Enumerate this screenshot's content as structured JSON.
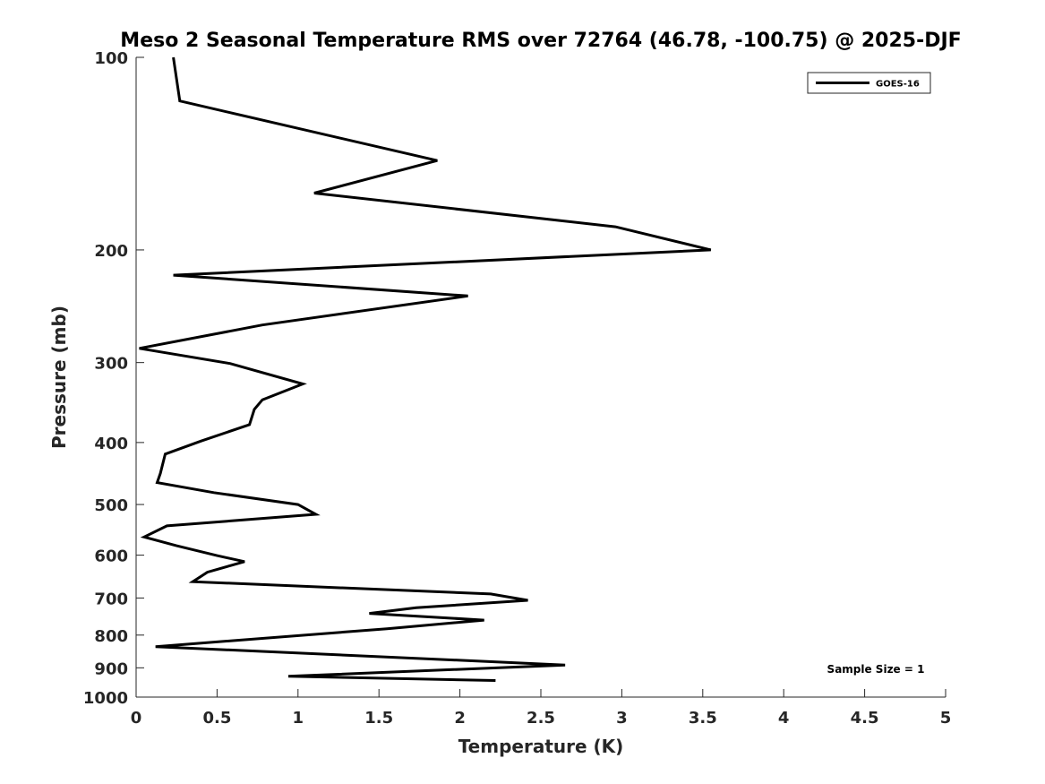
{
  "chart_data": {
    "type": "line",
    "title": "Meso 2 Seasonal Temperature RMS over 72764 (46.78, -100.75) @ 2025-DJF",
    "xlabel": "Temperature (K)",
    "ylabel": "Pressure (mb)",
    "xlim": [
      0,
      5
    ],
    "ylim": [
      100,
      1000
    ],
    "yscale": "log",
    "y_reversed": true,
    "x_ticks": [
      0,
      0.5,
      1,
      1.5,
      2,
      2.5,
      3,
      3.5,
      4,
      4.5,
      5
    ],
    "x_tick_labels": [
      "0",
      "0.5",
      "1",
      "1.5",
      "2",
      "2.5",
      "3",
      "3.5",
      "4",
      "4.5",
      "5"
    ],
    "y_ticks": [
      100,
      200,
      300,
      400,
      500,
      600,
      700,
      800,
      900,
      1000
    ],
    "y_tick_labels": [
      "100",
      "200",
      "300",
      "400",
      "500",
      "600",
      "700",
      "800",
      "900",
      "1000"
    ],
    "grid": false,
    "legend_position": "top-right",
    "series": [
      {
        "name": "GOES-16",
        "color": "#000000",
        "x": [
          0.23,
          0.27,
          1.86,
          1.1,
          2.96,
          3.55,
          0.23,
          2.05,
          0.78,
          0.02,
          0.58,
          1.03,
          0.78,
          0.73,
          0.7,
          0.4,
          0.18,
          0.15,
          0.13,
          0.48,
          1.0,
          1.11,
          0.19,
          0.05,
          0.25,
          0.5,
          0.67,
          0.44,
          0.35,
          2.19,
          2.42,
          1.73,
          1.44,
          2.15,
          1.55,
          0.12,
          2.65,
          0.94,
          2.22
        ],
        "y": [
          100,
          117,
          145,
          163,
          184,
          200,
          219,
          236,
          262,
          285,
          301,
          324,
          343,
          355,
          375,
          398,
          417,
          447,
          462,
          479,
          500,
          518,
          540,
          562,
          580,
          601,
          614,
          638,
          660,
          690,
          706,
          725,
          740,
          758,
          782,
          834,
          891,
          928,
          942
        ]
      }
    ],
    "annotations": [
      {
        "text": "Sample Size = 1",
        "position": "bottom-right"
      }
    ]
  }
}
